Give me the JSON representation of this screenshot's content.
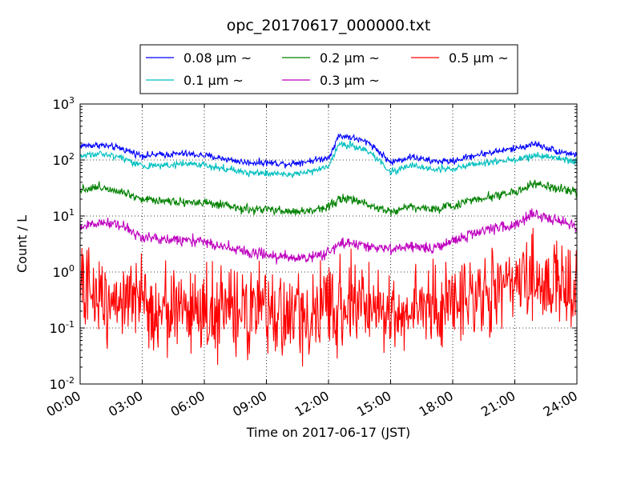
{
  "chart_data": {
    "type": "line",
    "title": "opc_20170617_000000.txt",
    "xlabel": "Time on 2017-06-17 (JST)",
    "ylabel": "Count / L",
    "y_scale": "log",
    "ylim": [
      0.01,
      1000
    ],
    "xlim_hours": [
      0,
      24
    ],
    "x_tick_values": [
      0,
      3,
      6,
      9,
      12,
      15,
      18,
      21,
      24
    ],
    "x_ticks": [
      "00:00",
      "03:00",
      "06:00",
      "09:00",
      "12:00",
      "15:00",
      "18:00",
      "21:00",
      "24:00"
    ],
    "y_ticks": [
      {
        "value": 0.01,
        "base": "10",
        "exp": "-2"
      },
      {
        "value": 0.1,
        "base": "10",
        "exp": "-1"
      },
      {
        "value": 1,
        "base": "10",
        "exp": "0"
      },
      {
        "value": 10,
        "base": "10",
        "exp": "1"
      },
      {
        "value": 100,
        "base": "10",
        "exp": "2"
      },
      {
        "value": 1000,
        "base": "10",
        "exp": "3"
      }
    ],
    "grid": true,
    "legend_position": "top-center-outside",
    "x_hours": [
      0,
      1,
      2,
      3,
      4,
      5,
      6,
      7,
      8,
      9,
      10,
      11,
      12,
      12.5,
      13,
      14,
      15,
      16,
      17,
      18,
      19,
      20,
      21,
      22,
      23,
      24
    ],
    "series": [
      {
        "name": "0.08 µm ~",
        "color": "#0000ff",
        "noise": 0.03,
        "values": [
          180,
          185,
          160,
          120,
          125,
          130,
          120,
          105,
          90,
          90,
          85,
          95,
          110,
          270,
          260,
          200,
          90,
          115,
          95,
          95,
          120,
          140,
          160,
          195,
          145,
          125
        ]
      },
      {
        "name": "0.2 µm ~",
        "color": "#008000",
        "noise": 0.04,
        "values": [
          30,
          33,
          28,
          20,
          19,
          18,
          17,
          15,
          13,
          13,
          12,
          12,
          15,
          20,
          20,
          16,
          12,
          15,
          13,
          15,
          20,
          23,
          27,
          37,
          31,
          26
        ]
      },
      {
        "name": "0.5 µm ~",
        "color": "#ff0000",
        "noise": 0.38,
        "values": [
          0.45,
          0.4,
          0.35,
          0.25,
          0.22,
          0.22,
          0.2,
          0.2,
          0.2,
          0.17,
          0.17,
          0.16,
          0.2,
          0.3,
          0.3,
          0.25,
          0.2,
          0.22,
          0.22,
          0.28,
          0.4,
          0.45,
          0.55,
          0.8,
          0.6,
          0.4
        ]
      },
      {
        "name": "0.1 µm ~",
        "color": "#00bfbf",
        "noise": 0.03,
        "values": [
          120,
          130,
          110,
          80,
          80,
          85,
          80,
          70,
          60,
          58,
          55,
          60,
          75,
          190,
          185,
          140,
          60,
          80,
          68,
          70,
          85,
          95,
          100,
          120,
          110,
          90
        ]
      },
      {
        "name": "0.3 µm ~",
        "color": "#bf00bf",
        "noise": 0.05,
        "values": [
          6.5,
          7.5,
          7,
          4,
          3.8,
          3.8,
          3.4,
          2.9,
          2.3,
          2.0,
          1.8,
          1.8,
          2.2,
          3.3,
          3.2,
          2.9,
          2.5,
          2.8,
          2.6,
          3.5,
          5,
          6,
          7,
          11,
          8,
          6.5
        ]
      }
    ]
  }
}
